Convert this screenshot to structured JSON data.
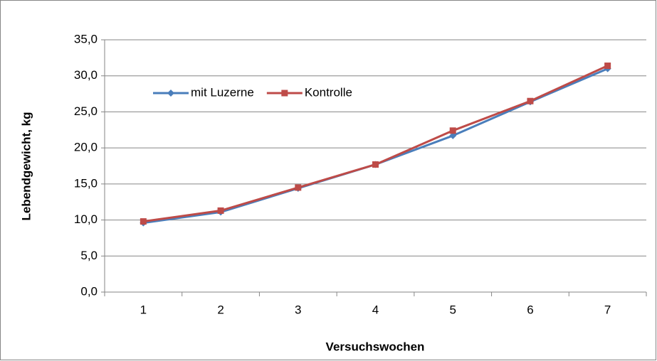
{
  "chart_data": {
    "type": "line",
    "categories": [
      "1",
      "2",
      "3",
      "4",
      "5",
      "6",
      "7"
    ],
    "series": [
      {
        "name": "mit Luzerne",
        "color": "#4a7ebb",
        "marker": "diamond",
        "values": [
          9.6,
          11.1,
          14.4,
          17.7,
          21.7,
          26.4,
          31.0
        ]
      },
      {
        "name": "Kontrolle",
        "color": "#be4b48",
        "marker": "square",
        "values": [
          9.8,
          11.3,
          14.5,
          17.7,
          22.4,
          26.5,
          31.4
        ]
      }
    ],
    "xlabel": "Versuchswochen",
    "ylabel": "Lebendgewicht, kg",
    "ylim": [
      0,
      35
    ],
    "yticks": [
      {
        "value": 0,
        "label": "0,0"
      },
      {
        "value": 5,
        "label": "5,0"
      },
      {
        "value": 10,
        "label": "10,0"
      },
      {
        "value": 15,
        "label": "15,0"
      },
      {
        "value": 20,
        "label": "20,0"
      },
      {
        "value": 25,
        "label": "25,0"
      },
      {
        "value": 30,
        "label": "30,0"
      },
      {
        "value": 35,
        "label": "35,0"
      }
    ],
    "grid": true,
    "legend": "top-left"
  }
}
